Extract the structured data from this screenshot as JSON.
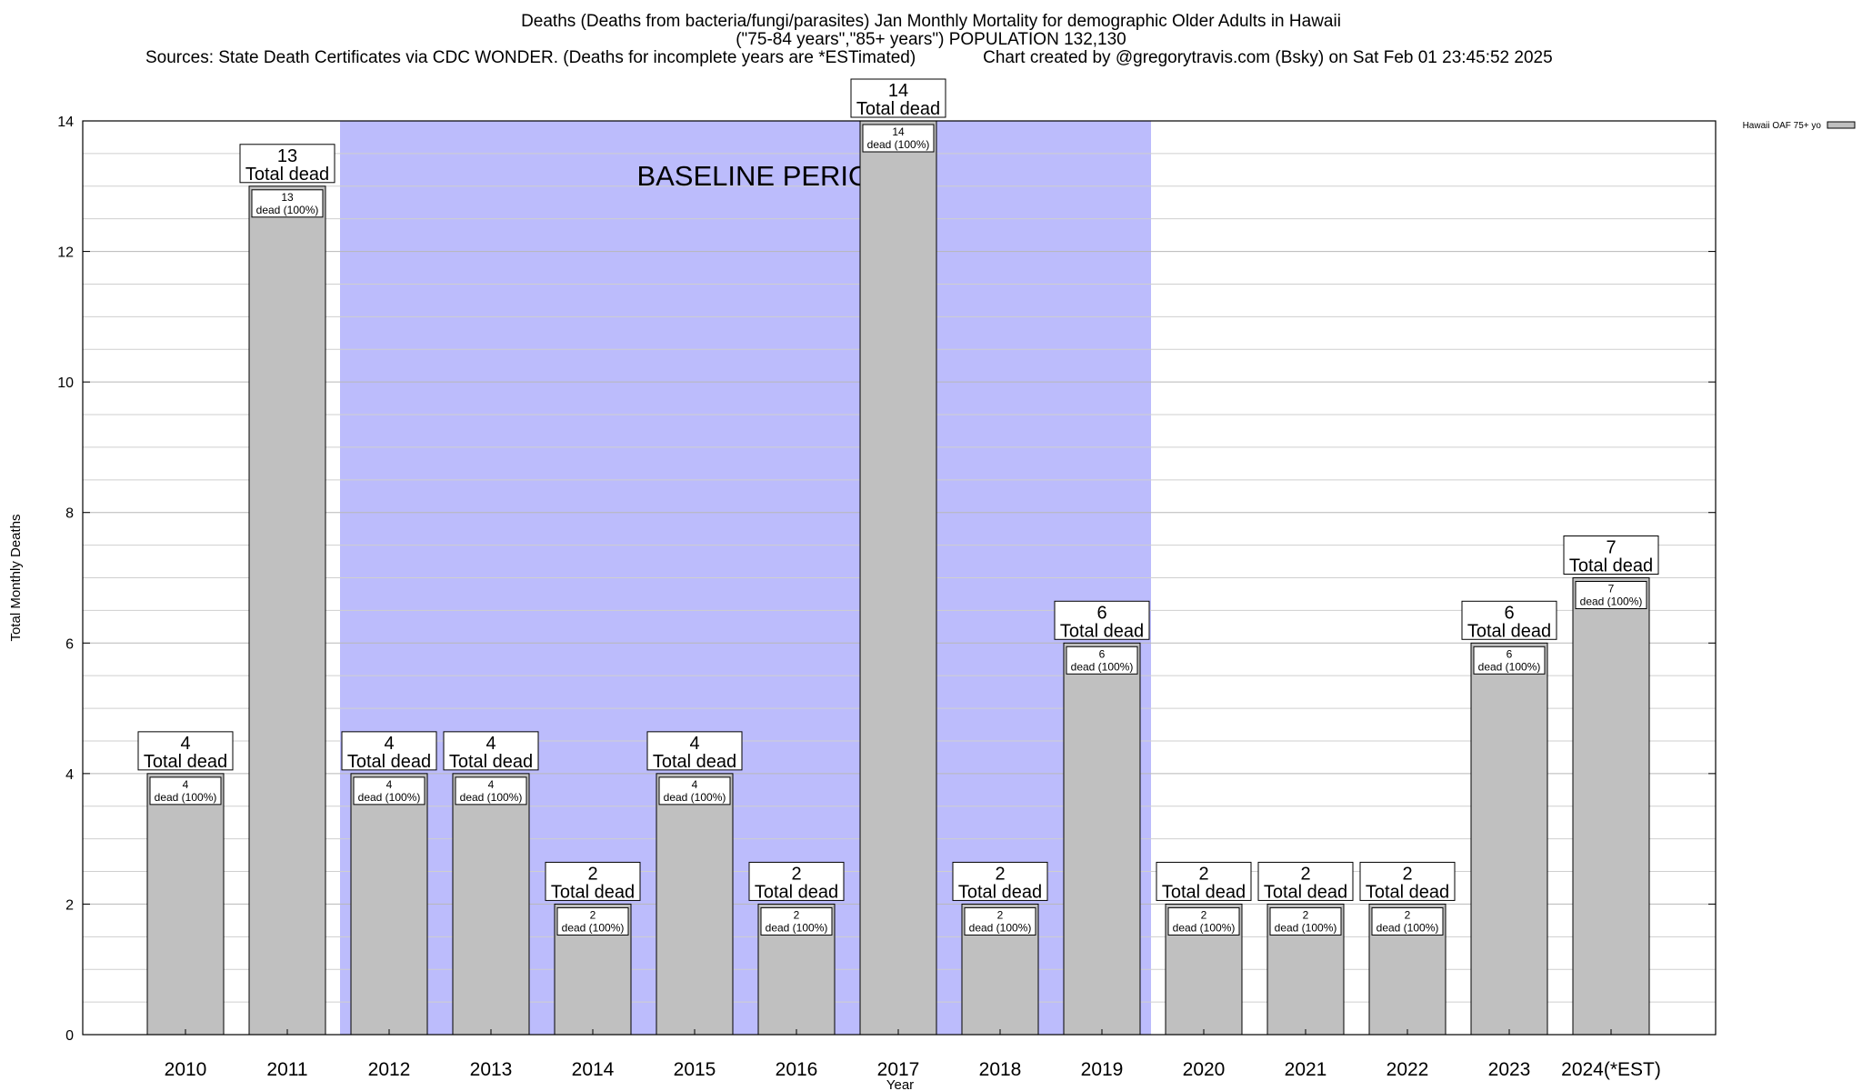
{
  "title": {
    "line1": "Deaths (Deaths from bacteria/fungi/parasites) Jan Monthly Mortality for demographic Older Adults in Hawaii",
    "line2": "(\"75-84 years\",\"85+ years\") POPULATION 132,130",
    "line3": "Sources: State Death Certificates via CDC WONDER. (Deaths for incomplete years are *ESTimated)              Chart created by @gregorytravis.com (Bsky) on Sat Feb 01 23:45:52 2025"
  },
  "chart_data": {
    "type": "bar",
    "xlabel": "Year",
    "ylabel": "Total Monthly Deaths",
    "ylim": [
      0,
      14
    ],
    "yticks": [
      0,
      2,
      4,
      6,
      8,
      10,
      12,
      14
    ],
    "grid": true,
    "categories": [
      "2010",
      "2011",
      "2012",
      "2013",
      "2014",
      "2015",
      "2016",
      "2017",
      "2018",
      "2019",
      "2020",
      "2021",
      "2022",
      "2023",
      "2024(*EST)"
    ],
    "series": [
      {
        "name": "Hawaii OAF 75+ yo",
        "color": "#c0c0c0",
        "values": [
          4,
          13,
          4,
          4,
          2,
          4,
          2,
          14,
          2,
          6,
          2,
          2,
          2,
          6,
          7
        ]
      }
    ],
    "total_label": "Total dead",
    "inner_label": "dead (100%)",
    "baseline": {
      "label": "BASELINE PERIOD",
      "from": "2012",
      "to": "2019",
      "color": "#bcbcfc"
    },
    "legend_position": "top-right"
  }
}
